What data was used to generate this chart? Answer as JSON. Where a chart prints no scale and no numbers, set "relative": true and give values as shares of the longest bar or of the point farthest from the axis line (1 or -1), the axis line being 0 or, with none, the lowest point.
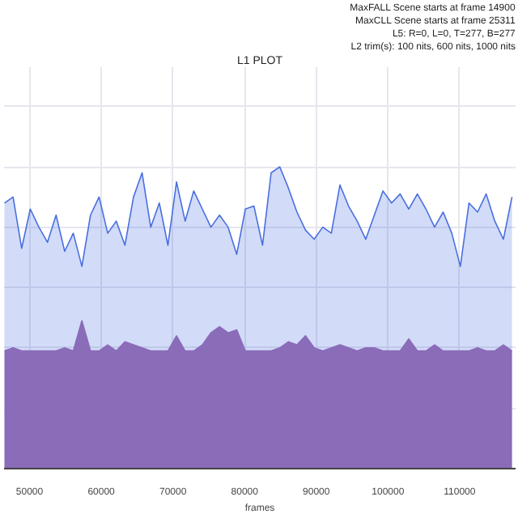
{
  "chart_data": {
    "type": "area",
    "title": "L1 PLOT",
    "xlabel": "frames",
    "relative": true,
    "grid": true,
    "annotations": [
      "MaxFALL Scene starts at frame 14900",
      "MaxCLL Scene starts at frame 25311",
      "L5: R=0, L=0, T=277, B=277",
      "L2 trim(s): 100 nits, 600 nits, 1000 nits"
    ],
    "xlim": [
      46440,
      117800
    ],
    "xticks": [
      50000,
      60000,
      70000,
      80000,
      90000,
      100000,
      110000
    ],
    "x": [
      46500,
      47700,
      48900,
      50100,
      51300,
      52500,
      53700,
      54900,
      56100,
      57300,
      58500,
      59700,
      60900,
      62100,
      63300,
      64500,
      65700,
      66900,
      68100,
      69300,
      70500,
      71700,
      72900,
      74100,
      75300,
      76500,
      77700,
      78900,
      80100,
      81300,
      82500,
      83700,
      84900,
      86100,
      87300,
      88500,
      89700,
      90900,
      92100,
      93300,
      94500,
      95700,
      96900,
      98100,
      99300,
      100500,
      101700,
      102900,
      104100,
      105300,
      106500,
      107700,
      108900,
      110100,
      111300,
      112500,
      113700,
      114900,
      116100,
      117300
    ],
    "series": [
      {
        "color": "#4a6fe0",
        "values": [
          0.88,
          0.9,
          0.73,
          0.86,
          0.8,
          0.75,
          0.84,
          0.72,
          0.78,
          0.67,
          0.84,
          0.9,
          0.78,
          0.82,
          0.74,
          0.9,
          0.98,
          0.8,
          0.88,
          0.74,
          0.95,
          0.82,
          0.92,
          0.86,
          0.8,
          0.84,
          0.8,
          0.71,
          0.86,
          0.87,
          0.74,
          0.98,
          1,
          0.93,
          0.85,
          0.79,
          0.76,
          0.8,
          0.78,
          0.94,
          0.87,
          0.82,
          0.76,
          0.84,
          0.92,
          0.88,
          0.91,
          0.86,
          0.91,
          0.86,
          0.8,
          0.85,
          0.78,
          0.67,
          0.88,
          0.85,
          0.91,
          0.82,
          0.76,
          0.9
        ]
      },
      {
        "color": "#8a6cb9",
        "values": [
          0.39,
          0.4,
          0.39,
          0.39,
          0.39,
          0.39,
          0.39,
          0.4,
          0.39,
          0.49,
          0.39,
          0.39,
          0.41,
          0.39,
          0.42,
          0.41,
          0.4,
          0.39,
          0.39,
          0.39,
          0.44,
          0.39,
          0.39,
          0.41,
          0.45,
          0.47,
          0.45,
          0.46,
          0.39,
          0.39,
          0.39,
          0.39,
          0.4,
          0.42,
          0.41,
          0.44,
          0.4,
          0.39,
          0.4,
          0.41,
          0.4,
          0.39,
          0.4,
          0.4,
          0.39,
          0.39,
          0.39,
          0.43,
          0.39,
          0.39,
          0.41,
          0.39,
          0.39,
          0.39,
          0.39,
          0.4,
          0.39,
          0.39,
          0.41,
          0.39
        ]
      }
    ]
  }
}
